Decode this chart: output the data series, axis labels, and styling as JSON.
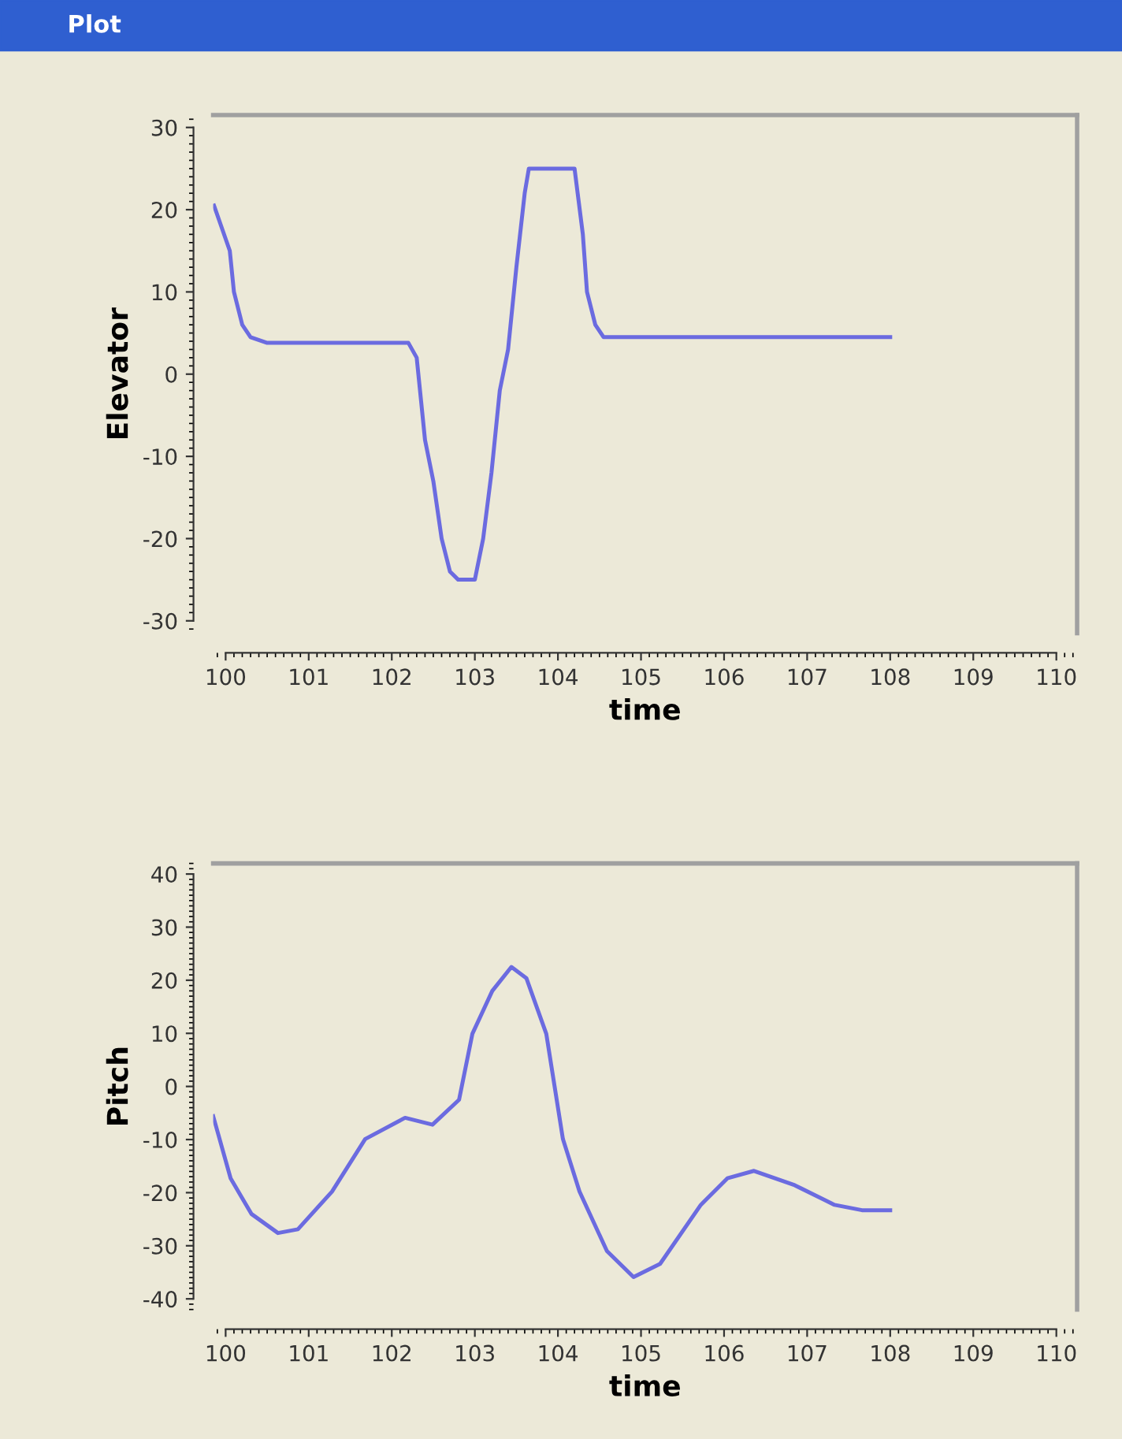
{
  "chart_data": [
    {
      "type": "line",
      "title": "Plot",
      "xlabel": "time",
      "ylabel": "Elevator",
      "xlim": [
        99.85,
        110.25
      ],
      "ylim": [
        -31.5,
        31.5
      ],
      "xticks": [
        100,
        101,
        102,
        103,
        104,
        105,
        106,
        107,
        108,
        109,
        110
      ],
      "yticks": [
        -30,
        -20,
        -10,
        0,
        10,
        20,
        30
      ],
      "grid": false,
      "legend": false,
      "series": [
        {
          "color": "#6b6be0",
          "x": [
            99.86,
            100.05,
            100.1,
            100.2,
            100.3,
            100.5,
            102.2,
            102.3,
            102.4,
            102.5,
            102.6,
            102.7,
            102.8,
            103.0,
            103.1,
            103.2,
            103.3,
            103.4,
            103.5,
            103.6,
            103.65,
            104.2,
            104.3,
            104.35,
            104.45,
            104.55,
            108.0
          ],
          "values": [
            20.5,
            15,
            10,
            6,
            4.5,
            3.8,
            3.8,
            2,
            -8,
            -13,
            -20,
            -24,
            -25,
            -25,
            -20,
            -12,
            -2,
            3,
            13,
            22,
            25,
            25,
            17,
            10,
            6,
            4.5,
            4.5
          ]
        }
      ]
    },
    {
      "type": "line",
      "xlabel": "time",
      "ylabel": "Pitch",
      "xlim": [
        99.85,
        110.25
      ],
      "ylim": [
        -42,
        42
      ],
      "xticks": [
        100,
        101,
        102,
        103,
        104,
        105,
        106,
        107,
        108,
        109,
        110
      ],
      "yticks": [
        -40,
        -30,
        -20,
        -10,
        0,
        10,
        20,
        30,
        40
      ],
      "grid": false,
      "legend": false,
      "series": [
        {
          "color": "#6b6be0",
          "x": [
            99.85,
            100.06,
            100.31,
            100.63,
            100.87,
            101.28,
            101.68,
            102.16,
            102.49,
            102.81,
            102.97,
            103.21,
            103.44,
            103.62,
            103.86,
            104.06,
            104.26,
            104.59,
            104.91,
            105.23,
            105.72,
            106.04,
            106.36,
            106.85,
            107.33,
            107.66,
            108.0
          ],
          "values": [
            -5.6,
            -17.3,
            -24,
            -27.6,
            -26.9,
            -19.8,
            -9.9,
            -5.9,
            -7.2,
            -2.5,
            9.9,
            18,
            22.5,
            20.4,
            9.9,
            -9.9,
            -19.8,
            -31,
            -35.9,
            -33.4,
            -22.3,
            -17.3,
            -15.9,
            -18.6,
            -22.3,
            -23.3,
            -23.3
          ]
        }
      ]
    }
  ]
}
